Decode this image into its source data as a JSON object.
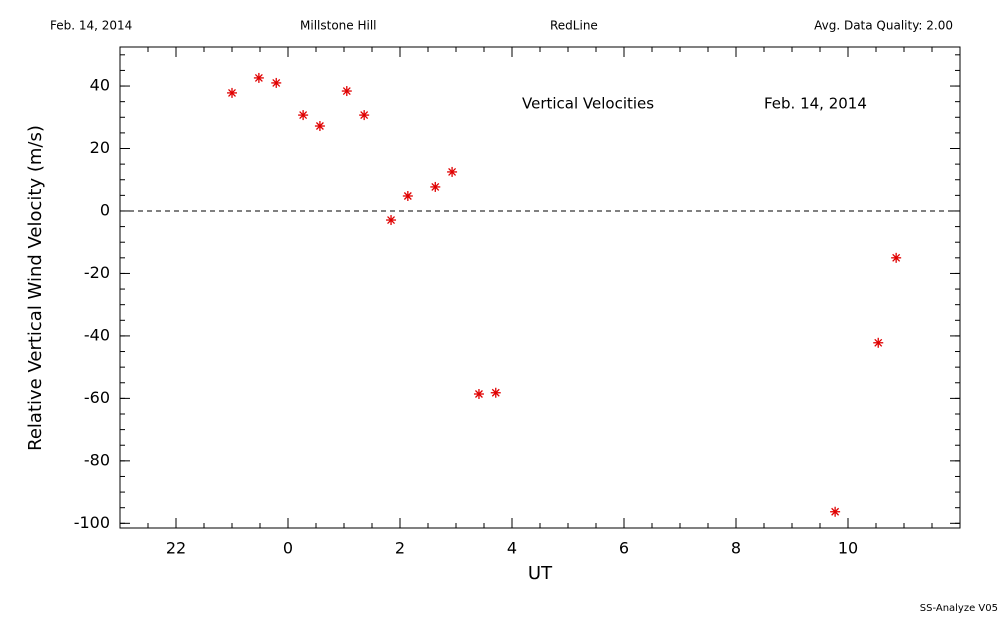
{
  "header": {
    "date": "Feb. 14, 2014",
    "site": "Millstone Hill",
    "instrument": "RedLine",
    "quality": "Avg. Data Quality: 2.00"
  },
  "footer": "SS-Analyze V05",
  "chart_data": {
    "type": "scatter",
    "xlabel": "UT",
    "ylabel": "Relative Vertical Wind Velocity (m/s)",
    "annotations": [
      "Vertical Velocities",
      "Feb. 14, 2014"
    ],
    "x": [
      -1.0,
      -0.52,
      -0.21,
      0.27,
      0.57,
      1.05,
      1.36,
      1.84,
      2.14,
      2.63,
      2.93,
      3.41,
      3.71,
      9.77,
      10.54,
      10.86
    ],
    "series": [
      {
        "name": "Vertical Velocities",
        "color": "#e00000",
        "values": [
          37.8,
          42.6,
          41.0,
          30.7,
          27.2,
          38.4,
          30.7,
          -2.9,
          4.8,
          7.7,
          12.5,
          -58.6,
          -58.2,
          -96.3,
          -42.2,
          -15.0
        ]
      }
    ],
    "xlim": [
      -3,
      12
    ],
    "xticks": [
      {
        "value": -2,
        "label": "22"
      },
      0,
      2,
      4,
      6,
      8,
      10
    ],
    "ylim": [
      -101.5,
      52.5
    ],
    "yticks": [
      -100,
      -80,
      -60,
      -40,
      -20,
      0,
      20,
      40
    ],
    "zero_line": 0
  }
}
